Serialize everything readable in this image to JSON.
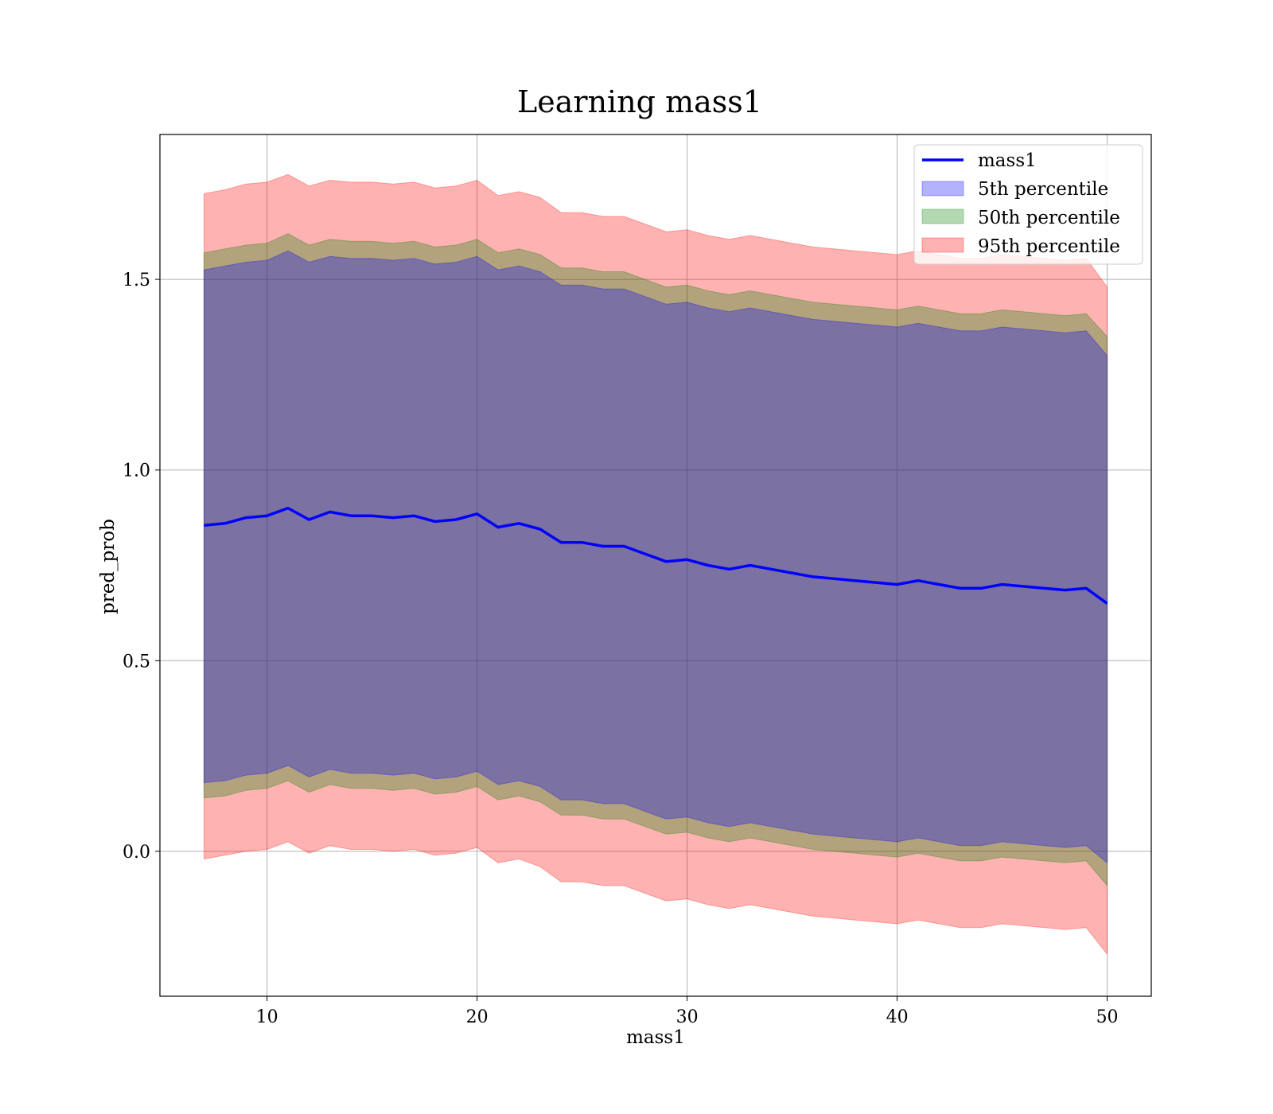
{
  "chart_data": {
    "type": "line",
    "title": "Learning mass1",
    "xlabel": "mass1",
    "ylabel": "pred_prob",
    "xlim": [
      4.9,
      52.1
    ],
    "ylim": [
      -0.38,
      1.88
    ],
    "xticks": [
      10,
      20,
      30,
      40,
      50
    ],
    "yticks": [
      0.0,
      0.5,
      1.0,
      1.5
    ],
    "xtick_labels": [
      "10",
      "20",
      "30",
      "40",
      "50"
    ],
    "ytick_labels": [
      "0.0",
      "0.5",
      "1.0",
      "1.5"
    ],
    "grid": true,
    "legend_position": "top-right",
    "x": [
      7,
      8,
      9,
      10,
      11,
      12,
      13,
      14,
      15,
      16,
      17,
      18,
      19,
      20,
      21,
      22,
      23,
      24,
      25,
      26,
      27,
      28,
      29,
      30,
      31,
      32,
      33,
      34,
      35,
      36,
      37,
      38,
      39,
      40,
      41,
      42,
      43,
      44,
      45,
      46,
      47,
      48,
      49,
      50
    ],
    "series": [
      {
        "name": "mass1",
        "kind": "line",
        "color": "#0000ff",
        "values": [
          0.855,
          0.86,
          0.875,
          0.88,
          0.9,
          0.87,
          0.89,
          0.88,
          0.88,
          0.875,
          0.88,
          0.865,
          0.87,
          0.885,
          0.85,
          0.86,
          0.845,
          0.81,
          0.81,
          0.8,
          0.8,
          0.78,
          0.76,
          0.765,
          0.75,
          0.74,
          0.75,
          0.74,
          0.73,
          0.72,
          0.715,
          0.71,
          0.705,
          0.7,
          0.71,
          0.7,
          0.69,
          0.69,
          0.7,
          0.695,
          0.69,
          0.685,
          0.69,
          0.65
        ]
      },
      {
        "name": "5th percentile",
        "kind": "band",
        "color": "#0000ff",
        "upper": [
          1.525,
          1.535,
          1.545,
          1.55,
          1.575,
          1.545,
          1.56,
          1.555,
          1.555,
          1.55,
          1.555,
          1.54,
          1.545,
          1.56,
          1.525,
          1.535,
          1.52,
          1.485,
          1.485,
          1.475,
          1.475,
          1.455,
          1.435,
          1.44,
          1.425,
          1.415,
          1.425,
          1.415,
          1.405,
          1.395,
          1.39,
          1.385,
          1.38,
          1.375,
          1.385,
          1.375,
          1.365,
          1.365,
          1.375,
          1.37,
          1.365,
          1.36,
          1.365,
          1.3
        ],
        "lower": [
          0.18,
          0.185,
          0.2,
          0.205,
          0.225,
          0.195,
          0.215,
          0.205,
          0.205,
          0.2,
          0.205,
          0.19,
          0.195,
          0.21,
          0.175,
          0.185,
          0.17,
          0.135,
          0.135,
          0.125,
          0.125,
          0.105,
          0.085,
          0.09,
          0.075,
          0.065,
          0.075,
          0.065,
          0.055,
          0.045,
          0.04,
          0.035,
          0.03,
          0.025,
          0.035,
          0.025,
          0.015,
          0.015,
          0.025,
          0.02,
          0.015,
          0.01,
          0.015,
          -0.03
        ]
      },
      {
        "name": "50th percentile",
        "kind": "band",
        "color": "#008000",
        "upper": [
          1.57,
          1.58,
          1.59,
          1.595,
          1.62,
          1.59,
          1.605,
          1.6,
          1.6,
          1.595,
          1.6,
          1.585,
          1.59,
          1.605,
          1.57,
          1.58,
          1.565,
          1.53,
          1.53,
          1.52,
          1.52,
          1.5,
          1.48,
          1.485,
          1.47,
          1.46,
          1.47,
          1.46,
          1.45,
          1.44,
          1.435,
          1.43,
          1.425,
          1.42,
          1.43,
          1.42,
          1.41,
          1.41,
          1.42,
          1.415,
          1.41,
          1.405,
          1.41,
          1.35
        ],
        "lower": [
          0.14,
          0.145,
          0.16,
          0.165,
          0.185,
          0.155,
          0.175,
          0.165,
          0.165,
          0.16,
          0.165,
          0.15,
          0.155,
          0.17,
          0.135,
          0.145,
          0.13,
          0.095,
          0.095,
          0.085,
          0.085,
          0.065,
          0.045,
          0.05,
          0.035,
          0.025,
          0.035,
          0.025,
          0.015,
          0.005,
          0.0,
          -0.005,
          -0.01,
          -0.015,
          -0.005,
          -0.015,
          -0.025,
          -0.025,
          -0.015,
          -0.02,
          -0.025,
          -0.03,
          -0.025,
          -0.09
        ]
      },
      {
        "name": "95th percentile",
        "kind": "band",
        "color": "#ff0000",
        "upper": [
          1.725,
          1.735,
          1.75,
          1.755,
          1.775,
          1.745,
          1.76,
          1.755,
          1.755,
          1.75,
          1.755,
          1.74,
          1.745,
          1.76,
          1.72,
          1.73,
          1.715,
          1.675,
          1.675,
          1.665,
          1.665,
          1.645,
          1.625,
          1.63,
          1.615,
          1.605,
          1.615,
          1.605,
          1.595,
          1.585,
          1.58,
          1.575,
          1.57,
          1.565,
          1.575,
          1.565,
          1.555,
          1.555,
          1.565,
          1.56,
          1.555,
          1.55,
          1.555,
          1.48
        ],
        "lower": [
          -0.02,
          -0.01,
          0.0,
          0.005,
          0.025,
          -0.005,
          0.015,
          0.005,
          0.005,
          0.0,
          0.005,
          -0.01,
          -0.005,
          0.01,
          -0.03,
          -0.02,
          -0.04,
          -0.08,
          -0.08,
          -0.09,
          -0.09,
          -0.11,
          -0.13,
          -0.125,
          -0.14,
          -0.15,
          -0.14,
          -0.15,
          -0.16,
          -0.17,
          -0.175,
          -0.18,
          -0.185,
          -0.19,
          -0.18,
          -0.19,
          -0.2,
          -0.2,
          -0.19,
          -0.195,
          -0.2,
          -0.205,
          -0.2,
          -0.27
        ]
      }
    ]
  }
}
